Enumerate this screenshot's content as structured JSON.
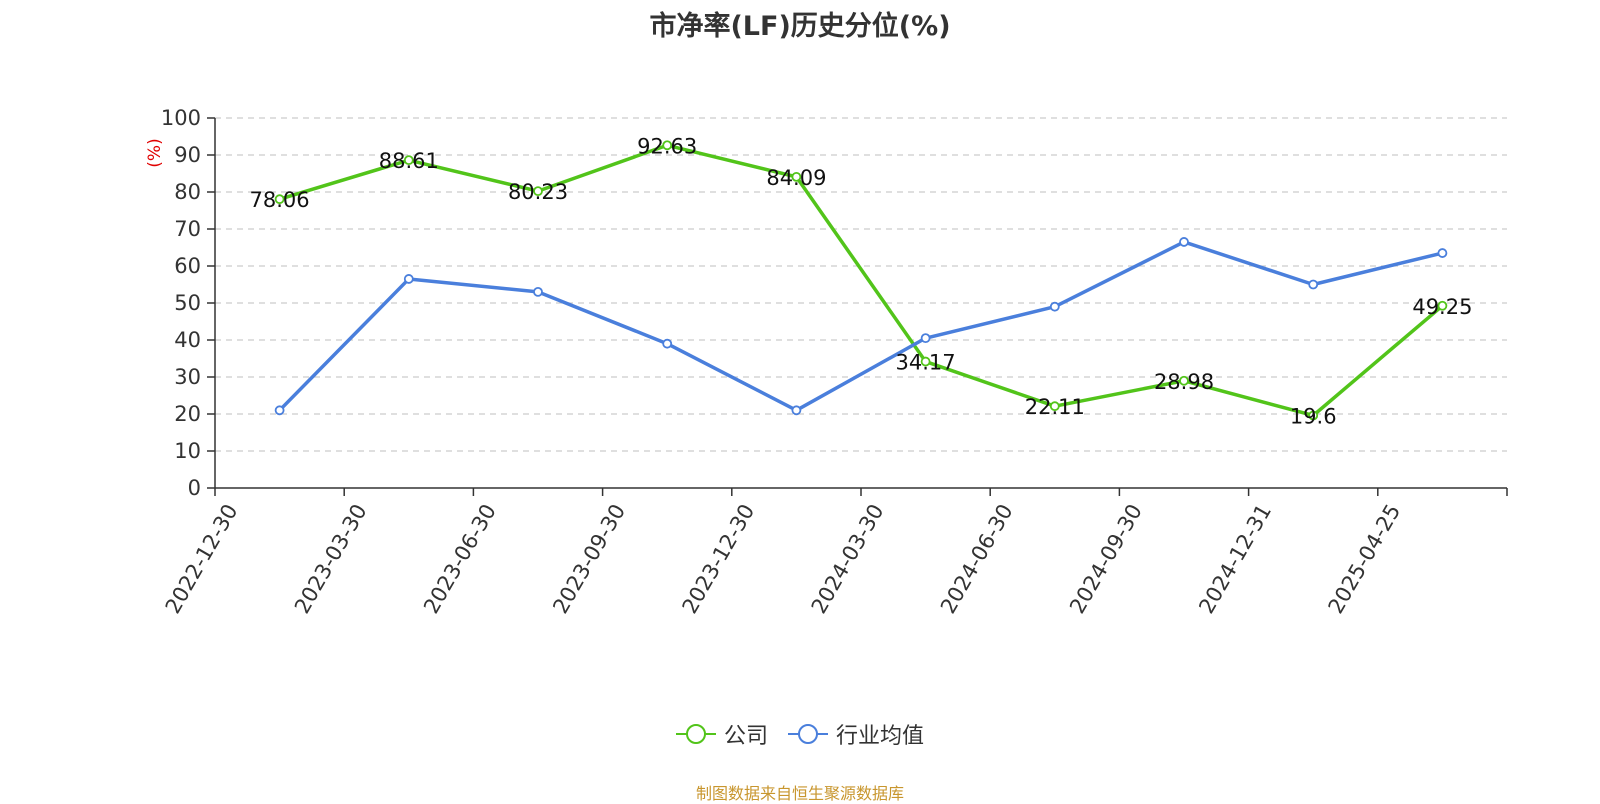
{
  "chart_data": {
    "type": "line",
    "title": "市净率(LF)历史分位(%)",
    "ylabel": "(%)",
    "xlabel": "",
    "ylim": [
      0,
      100
    ],
    "y_ticks": [
      "0",
      "10",
      "20",
      "30",
      "40",
      "50",
      "60",
      "70",
      "80",
      "90",
      "100"
    ],
    "categories": [
      "2022-12-30",
      "2023-03-30",
      "2023-06-30",
      "2023-09-30",
      "2023-12-30",
      "2024-03-30",
      "2024-06-30",
      "2024-09-30",
      "2024-12-31",
      "2025-04-25"
    ],
    "grid": true,
    "legend_position": "bottom",
    "series": [
      {
        "name": "公司",
        "color": "#52c41a",
        "values": [
          78.06,
          88.61,
          80.23,
          92.63,
          84.09,
          34.17,
          22.11,
          28.98,
          19.6,
          49.25
        ],
        "labels": [
          "78.06",
          "88.61",
          "80.23",
          "92.63",
          "84.09",
          "34.17",
          "22.11",
          "28.98",
          "19.6",
          "49.25"
        ]
      },
      {
        "name": "行业均值",
        "color": "#4a7fdc",
        "values": [
          21,
          56.5,
          53,
          39,
          21,
          40.5,
          49,
          66.5,
          55,
          63.5
        ]
      }
    ]
  },
  "source_text": "制图数据来自恒生聚源数据库",
  "colors": {
    "source": "#c8962e",
    "ylabel": "#e00000",
    "grid": "#cccccc",
    "axis": "#333333"
  }
}
